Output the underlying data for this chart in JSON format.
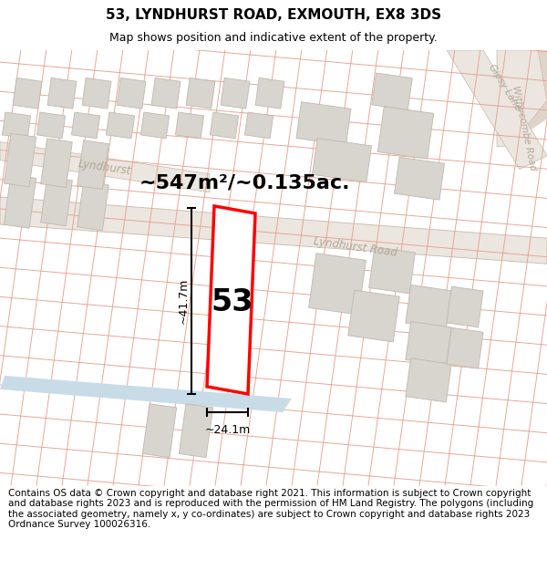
{
  "title": "53, LYNDHURST ROAD, EXMOUTH, EX8 3DS",
  "subtitle": "Map shows position and indicative extent of the property.",
  "footer": "Contains OS data © Crown copyright and database right 2021. This information is subject to Crown copyright and database rights 2023 and is reproduced with the permission of HM Land Registry. The polygons (including the associated geometry, namely x, y co-ordinates) are subject to Crown copyright and database rights 2023 Ordnance Survey 100026316.",
  "area_text": "~547m²/~0.135ac.",
  "height_label": "~41.7m",
  "width_label": "~24.1m",
  "number_label": "53",
  "map_bg": "#f2eeea",
  "road_band_color": "#e8e2dc",
  "road_outline_color": "#c8b8aa",
  "cadastral_color": "#e8a090",
  "property_edge_color": "#ff0000",
  "property_fill": "#ffffff",
  "building_fill": "#d8d4ce",
  "building_edge": "#c0b8b0",
  "gipsy_lane_color": "#e8e0d8",
  "water_color": "#c8dce8",
  "dim_line_color": "#000000",
  "text_color": "#000000",
  "road_label_color": "#b0a898",
  "title_fontsize": 11,
  "subtitle_fontsize": 9,
  "footer_fontsize": 7.5,
  "area_fontsize": 16,
  "number_fontsize": 24,
  "dim_fontsize": 9,
  "road_label_fontsize": 8.5
}
